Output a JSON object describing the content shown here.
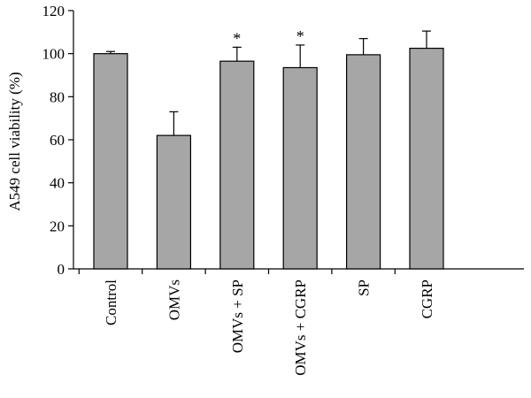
{
  "chart_data": {
    "type": "bar",
    "title": "",
    "xlabel": "",
    "ylabel": "A549 cell viability (%)",
    "ylim": [
      0,
      120
    ],
    "yticks": [
      0,
      20,
      40,
      60,
      80,
      100,
      120
    ],
    "categories": [
      "Control",
      "OMVs",
      "OMVs + SP",
      "OMVs + CGRP",
      "SP",
      "CGRP"
    ],
    "values": [
      100,
      62,
      96.5,
      93.5,
      99.5,
      102.5
    ],
    "error_upper": [
      1,
      11,
      6.5,
      10.5,
      7.5,
      8
    ],
    "annotations": [
      "",
      "",
      "*",
      "*",
      "",
      ""
    ],
    "bar_color": "#a6a6a6",
    "grid": false,
    "legend": "none"
  }
}
